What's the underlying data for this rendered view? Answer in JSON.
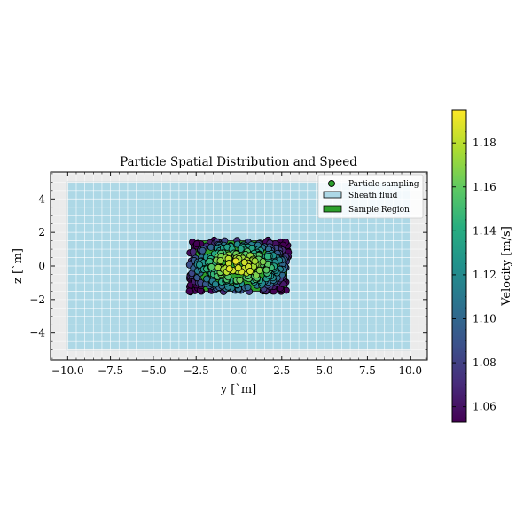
{
  "chart_data": {
    "type": "scatter",
    "title": "Particle Spatial Distribution and Speed",
    "xlabel": "y [`m]",
    "ylabel": "z [`m]",
    "xlim": [
      -11,
      11
    ],
    "ylim": [
      -5.6,
      5.6
    ],
    "xticks": [
      -10,
      -7.5,
      -5,
      -2.5,
      0,
      2.5,
      5,
      7.5,
      10
    ],
    "xtick_labels": [
      "−10.0",
      "−7.5",
      "−5.0",
      "−2.5",
      "0.0",
      "2.5",
      "5.0",
      "7.5",
      "10.0"
    ],
    "yticks": [
      -4,
      -2,
      0,
      2,
      4
    ],
    "ytick_labels": [
      "−4",
      "−2",
      "0",
      "2",
      "4"
    ],
    "grid": true,
    "legend_position": "top-right",
    "legend": [
      {
        "label": "Particle sampling",
        "kind": "marker"
      },
      {
        "label": "Sheath fluid",
        "kind": "patch",
        "color": "#add8e6"
      },
      {
        "label": "Sample Region",
        "kind": "patch",
        "color": "#2ca02c"
      }
    ],
    "sheath_region": {
      "y": [
        -10,
        10
      ],
      "z": [
        -5,
        5
      ],
      "color": "#add8e6"
    },
    "sample_region": {
      "y": [
        -2.8,
        2.8
      ],
      "z": [
        -1.5,
        1.5
      ],
      "color": "#2ca02c"
    },
    "particle_count": 380,
    "colorbar": {
      "label": "Velocity [m/s]",
      "min": 1.053,
      "max": 1.195,
      "ticks": [
        1.06,
        1.08,
        1.1,
        1.12,
        1.14,
        1.16,
        1.18
      ],
      "tick_labels": [
        "1.06",
        "1.08",
        "1.10",
        "1.12",
        "1.14",
        "1.16",
        "1.18"
      ],
      "colormap": "viridis"
    }
  }
}
